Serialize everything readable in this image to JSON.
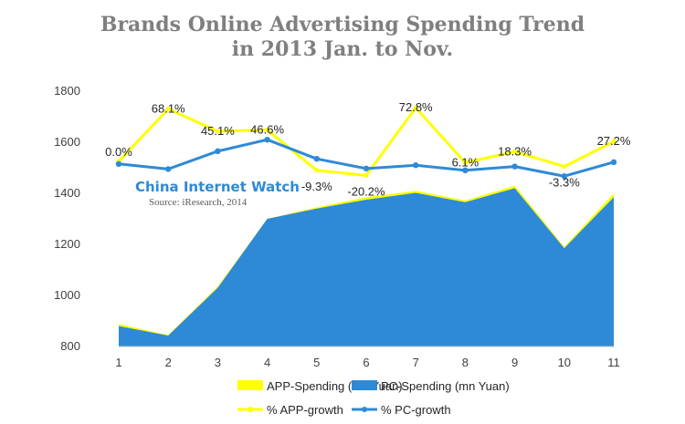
{
  "chart_data": {
    "type": "area",
    "title_lines": [
      "Brands Online Advertising Spending Trend",
      "in 2013 Jan. to Nov."
    ],
    "x": [
      1,
      2,
      3,
      4,
      5,
      6,
      7,
      8,
      9,
      10,
      11
    ],
    "xlabel": "",
    "ylabel": "",
    "ylim": [
      800,
      1800
    ],
    "yticks": [
      800,
      1000,
      1200,
      1400,
      1600,
      1800
    ],
    "grid": false,
    "legend_position": "bottom",
    "series": [
      {
        "name": "APP-Spending (mn Yuan)",
        "kind": "area",
        "color": "#ffff00",
        "values": [
          888,
          845,
          1035,
          1300,
          1345,
          1385,
          1410,
          1372,
          1430,
          1190,
          1400
        ]
      },
      {
        "name": "PC-Spending (mn Yuan)",
        "kind": "area",
        "color": "#2e8ad6",
        "values": [
          880,
          843,
          1030,
          1300,
          1340,
          1375,
          1402,
          1365,
          1420,
          1185,
          1385
        ]
      },
      {
        "name": "% APP-growth",
        "kind": "line",
        "color": "#ffff00",
        "plotted": [
          1525,
          1730,
          1643,
          1648,
          1490,
          1470,
          1735,
          1520,
          1563,
          1505,
          1603
        ],
        "labels": [
          "0.0%",
          "68.1%",
          "45.1%",
          "46.6%",
          "-9.3%",
          "-20.2%",
          "72.8%",
          "6.1%",
          "18.3%",
          "-3.3%",
          "27.2%"
        ]
      },
      {
        "name": "% PC-growth",
        "kind": "line",
        "color": "#2e8ad6",
        "plotted": [
          1515,
          1495,
          1565,
          1610,
          1535,
          1497,
          1510,
          1490,
          1505,
          1467,
          1522
        ]
      }
    ],
    "watermark": {
      "title": "China Internet  Watch",
      "source": "Source: iResearch, 2014"
    }
  }
}
